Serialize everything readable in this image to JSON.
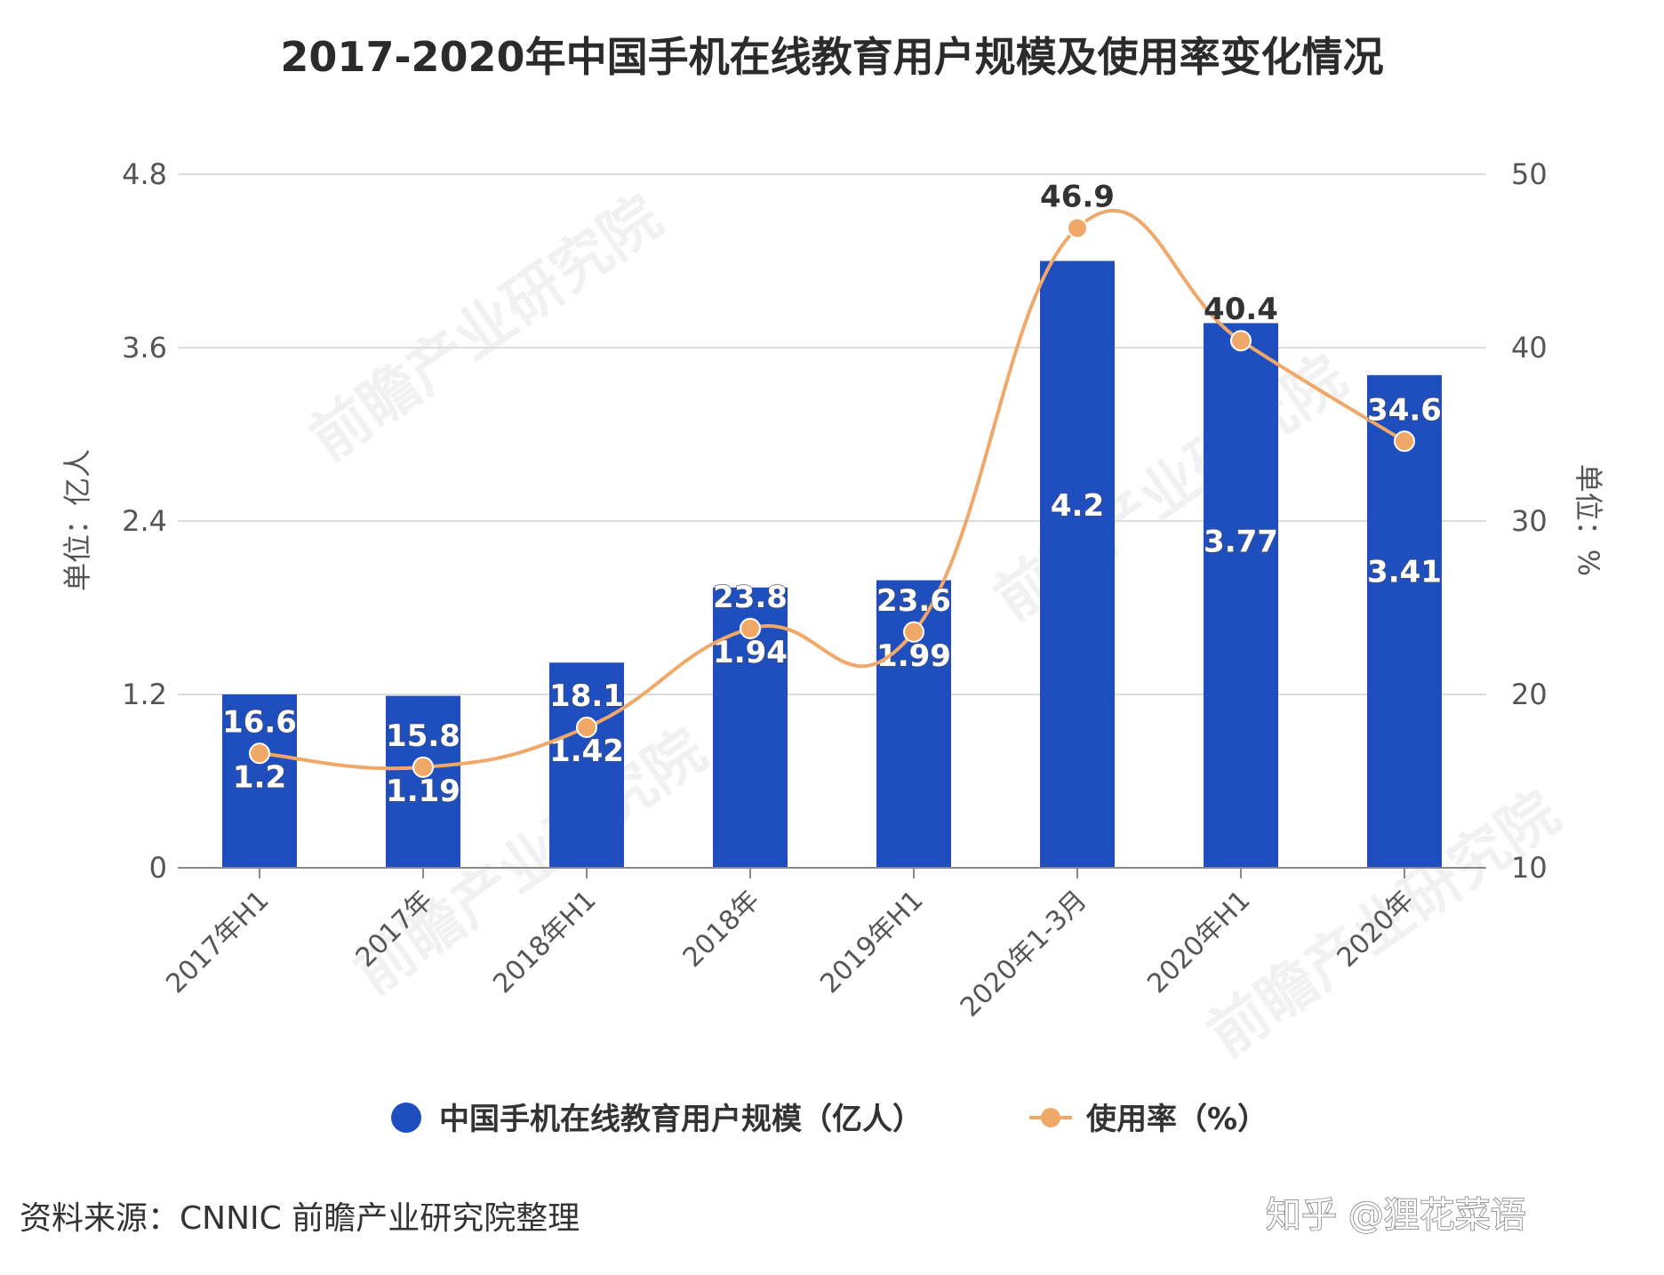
{
  "chart_data": {
    "type": "bar",
    "title": "2017-2020年中国手机在线教育用户规模及使用率变化情况",
    "categories": [
      "2017年H1",
      "2017年",
      "2018年H1",
      "2018年",
      "2019年H1",
      "2020年1-3月",
      "2020年H1",
      "2020年"
    ],
    "series": [
      {
        "name": "中国手机在线教育用户规模（亿人）",
        "type": "bar",
        "axis": "left",
        "color": "#1f4fbf",
        "values": [
          1.2,
          1.19,
          1.42,
          1.94,
          1.99,
          4.2,
          3.77,
          3.41
        ],
        "labels": [
          "1.2",
          "1.19",
          "1.42",
          "1.94",
          "1.99",
          "4.2",
          "3.77",
          "3.41"
        ]
      },
      {
        "name": "使用率（%）",
        "type": "line",
        "axis": "right",
        "color": "#f0a868",
        "values": [
          16.6,
          15.8,
          18.1,
          23.8,
          23.6,
          46.9,
          40.4,
          34.6
        ],
        "labels": [
          "16.6",
          "15.8",
          "18.1",
          "23.8",
          "23.6",
          "46.9",
          "40.4",
          "34.6"
        ]
      }
    ],
    "yaxis_left": {
      "label": "单位：亿人",
      "min": 0,
      "max": 4.8,
      "ticks": [
        "0",
        "1.2",
        "2.4",
        "3.6",
        "4.8"
      ]
    },
    "yaxis_right": {
      "label": "单位：%",
      "min": 10,
      "max": 50,
      "ticks": [
        "10",
        "20",
        "30",
        "40",
        "50"
      ]
    },
    "legend": [
      "中国手机在线教育用户规模（亿人）",
      "使用率（%）"
    ],
    "legend_position": "bottom",
    "grid": true
  },
  "source": "资料来源：CNNIC 前瞻产业研究院整理",
  "credit": "知乎 @狸花菜语"
}
